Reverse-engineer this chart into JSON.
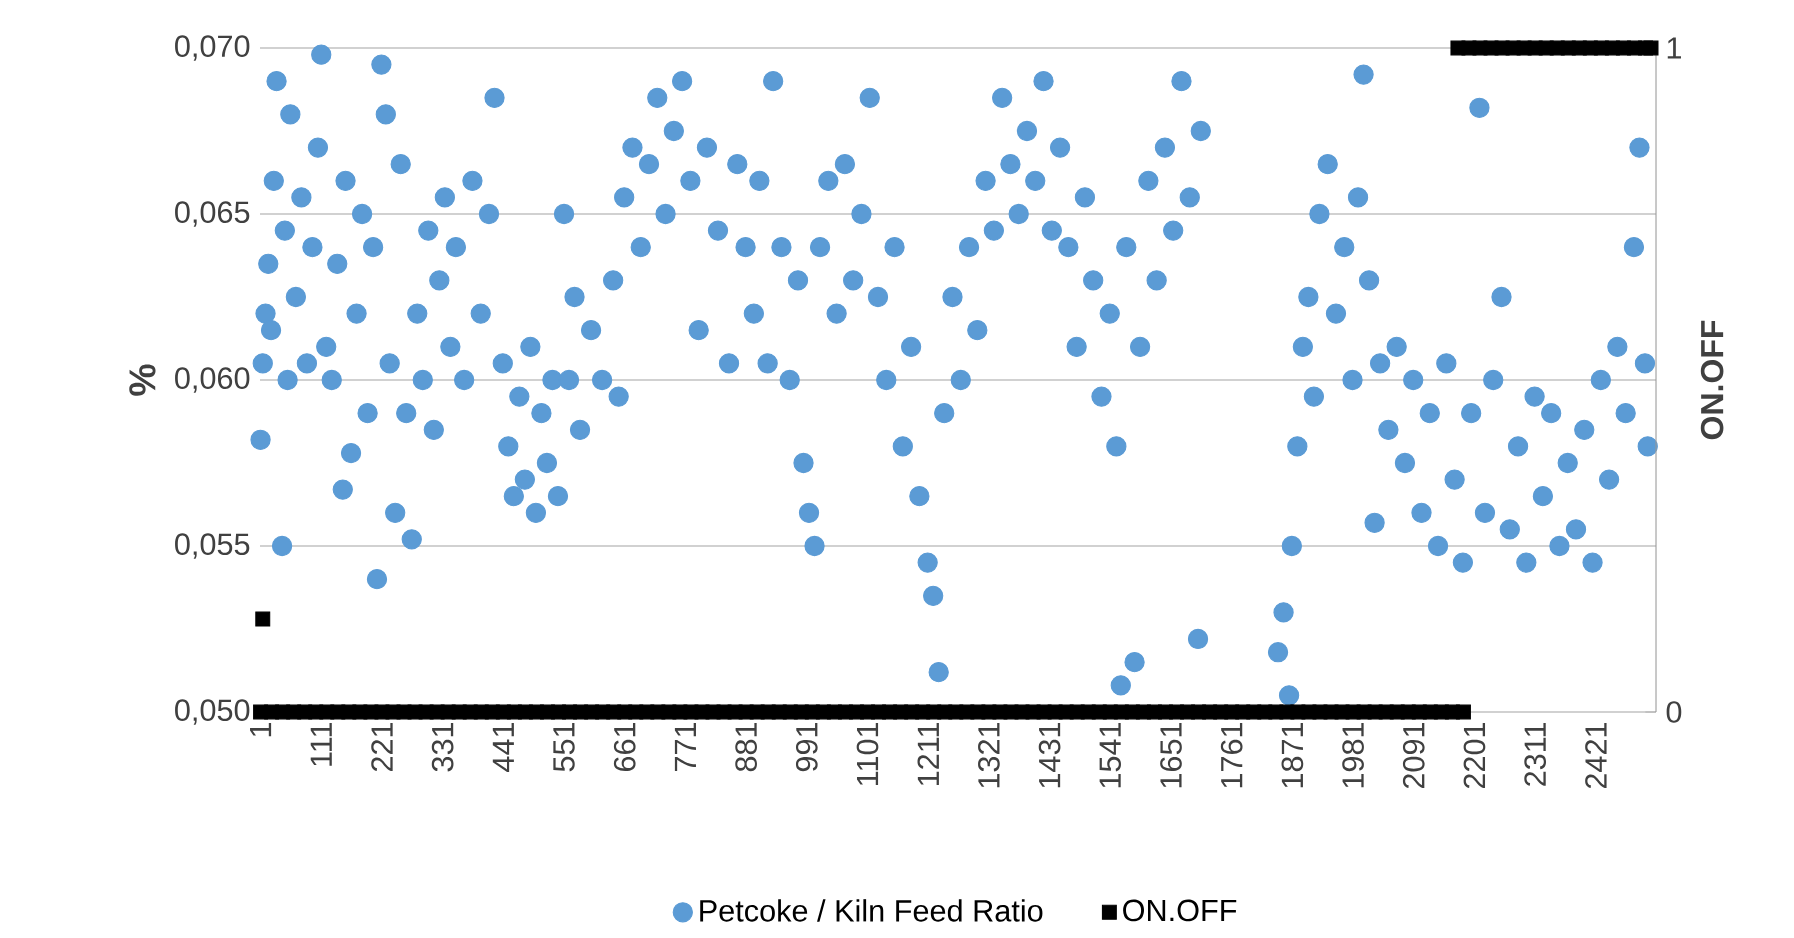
{
  "chart_data": {
    "type": "scatter",
    "ylabel": "%",
    "y2label": "ON.OFF",
    "xlim": [
      0,
      2530
    ],
    "xticks": [
      1,
      111,
      221,
      331,
      441,
      551,
      661,
      771,
      881,
      991,
      1101,
      1211,
      1321,
      1431,
      1541,
      1651,
      1761,
      1871,
      1981,
      2091,
      2201,
      2311,
      2421
    ],
    "ylim": [
      0.05,
      0.07
    ],
    "yticks": [
      {
        "value": 0.05,
        "label": "0,050"
      },
      {
        "value": 0.055,
        "label": "0,055"
      },
      {
        "value": 0.06,
        "label": "0,060"
      },
      {
        "value": 0.065,
        "label": "0,065"
      },
      {
        "value": 0.07,
        "label": "0,070"
      }
    ],
    "y2lim": [
      0,
      1
    ],
    "y2ticks": [
      0,
      1
    ],
    "grid": "y",
    "legend": "bottom",
    "series": [
      {
        "name": "Petcoke / Kiln Feed Ratio",
        "color": "#5b9bd5",
        "marker": "circle",
        "x": [
          1,
          5,
          10,
          15,
          20,
          25,
          30,
          40,
          45,
          50,
          55,
          65,
          75,
          85,
          95,
          105,
          111,
          120,
          130,
          140,
          150,
          155,
          165,
          175,
          185,
          195,
          205,
          212,
          220,
          228,
          235,
          245,
          255,
          265,
          275,
          285,
          295,
          305,
          315,
          325,
          335,
          345,
          355,
          370,
          385,
          400,
          415,
          425,
          440,
          450,
          460,
          470,
          480,
          490,
          500,
          510,
          520,
          530,
          540,
          551,
          560,
          570,
          580,
          600,
          620,
          640,
          650,
          660,
          675,
          690,
          705,
          720,
          735,
          750,
          765,
          780,
          795,
          810,
          830,
          850,
          865,
          880,
          895,
          905,
          920,
          930,
          945,
          960,
          975,
          985,
          995,
          1005,
          1015,
          1030,
          1045,
          1060,
          1075,
          1090,
          1105,
          1120,
          1135,
          1150,
          1165,
          1180,
          1195,
          1210,
          1220,
          1230,
          1240,
          1255,
          1270,
          1285,
          1300,
          1315,
          1330,
          1345,
          1360,
          1375,
          1390,
          1405,
          1420,
          1435,
          1450,
          1465,
          1480,
          1495,
          1510,
          1525,
          1540,
          1552,
          1560,
          1570,
          1585,
          1595,
          1610,
          1625,
          1640,
          1655,
          1670,
          1685,
          1700,
          1705,
          1845,
          1855,
          1865,
          1870,
          1880,
          1890,
          1900,
          1910,
          1920,
          1935,
          1950,
          1965,
          1980,
          1990,
          2000,
          2010,
          2020,
          2030,
          2045,
          2060,
          2075,
          2090,
          2105,
          2120,
          2135,
          2150,
          2165,
          2180,
          2195,
          2210,
          2220,
          2235,
          2250,
          2265,
          2280,
          2295,
          2310,
          2325,
          2340,
          2355,
          2370,
          2385,
          2400,
          2415,
          2430,
          2445,
          2460,
          2475,
          2490,
          2500,
          2510,
          2515
        ],
        "values": [
          0.0582,
          0.0605,
          0.062,
          0.0635,
          0.0615,
          0.066,
          0.069,
          0.055,
          0.0645,
          0.06,
          0.068,
          0.0625,
          0.0655,
          0.0605,
          0.064,
          0.067,
          0.0698,
          0.061,
          0.06,
          0.0635,
          0.0567,
          0.066,
          0.0578,
          0.062,
          0.065,
          0.059,
          0.064,
          0.054,
          0.0695,
          0.068,
          0.0605,
          0.056,
          0.0665,
          0.059,
          0.0552,
          0.062,
          0.06,
          0.0645,
          0.0585,
          0.063,
          0.0655,
          0.061,
          0.064,
          0.06,
          0.066,
          0.062,
          0.065,
          0.0685,
          0.0605,
          0.058,
          0.0565,
          0.0595,
          0.057,
          0.061,
          0.056,
          0.059,
          0.0575,
          0.06,
          0.0565,
          0.065,
          0.06,
          0.0625,
          0.0585,
          0.0615,
          0.06,
          0.063,
          0.0595,
          0.0655,
          0.067,
          0.064,
          0.0665,
          0.0685,
          0.065,
          0.0675,
          0.069,
          0.066,
          0.0615,
          0.067,
          0.0645,
          0.0605,
          0.0665,
          0.064,
          0.062,
          0.066,
          0.0605,
          0.069,
          0.064,
          0.06,
          0.063,
          0.0575,
          0.056,
          0.055,
          0.064,
          0.066,
          0.062,
          0.0665,
          0.063,
          0.065,
          0.0685,
          0.0625,
          0.06,
          0.064,
          0.058,
          0.061,
          0.0565,
          0.0545,
          0.0535,
          0.0512,
          0.059,
          0.0625,
          0.06,
          0.064,
          0.0615,
          0.066,
          0.0645,
          0.0685,
          0.0665,
          0.065,
          0.0675,
          0.066,
          0.069,
          0.0645,
          0.067,
          0.064,
          0.061,
          0.0655,
          0.063,
          0.0595,
          0.062,
          0.058,
          0.0508,
          0.064,
          0.0515,
          0.061,
          0.066,
          0.063,
          0.067,
          0.0645,
          0.069,
          0.0655,
          0.0522,
          0.0675,
          0.0518,
          0.053,
          0.0505,
          0.055,
          0.058,
          0.061,
          0.0625,
          0.0595,
          0.065,
          0.0665,
          0.062,
          0.064,
          0.06,
          0.0655,
          0.0692,
          0.063,
          0.0557,
          0.0605,
          0.0585,
          0.061,
          0.0575,
          0.06,
          0.056,
          0.059,
          0.055,
          0.0605,
          0.057,
          0.0545,
          0.059,
          0.0682,
          0.056,
          0.06,
          0.0625,
          0.0555,
          0.058,
          0.0545,
          0.0595,
          0.0565,
          0.059,
          0.055,
          0.0575,
          0.0555,
          0.0585,
          0.0545,
          0.06,
          0.057,
          0.061,
          0.059,
          0.064,
          0.067,
          0.0605,
          0.058
        ]
      },
      {
        "name": "ON.OFF",
        "color": "#000000",
        "marker": "square",
        "axis": "y2",
        "x": [
          5,
          1,
          21,
          41,
          61,
          81,
          101,
          121,
          141,
          161,
          181,
          201,
          221,
          241,
          261,
          281,
          301,
          321,
          341,
          361,
          381,
          401,
          421,
          441,
          461,
          481,
          501,
          521,
          541,
          561,
          581,
          601,
          621,
          641,
          661,
          681,
          701,
          721,
          741,
          761,
          781,
          801,
          821,
          841,
          861,
          881,
          901,
          921,
          941,
          961,
          981,
          1001,
          1021,
          1041,
          1061,
          1081,
          1101,
          1121,
          1141,
          1161,
          1181,
          1201,
          1221,
          1241,
          1261,
          1281,
          1301,
          1321,
          1341,
          1361,
          1381,
          1401,
          1421,
          1441,
          1461,
          1481,
          1501,
          1521,
          1541,
          1561,
          1581,
          1601,
          1621,
          1641,
          1661,
          1681,
          1701,
          1721,
          1741,
          1761,
          1781,
          1801,
          1821,
          1841,
          1861,
          1881,
          1901,
          1921,
          1941,
          1961,
          1981,
          2001,
          2021,
          2041,
          2061,
          2081,
          2101,
          2121,
          2141,
          2161,
          2181,
          2171,
          2191,
          2211,
          2231,
          2251,
          2271,
          2291,
          2311,
          2331,
          2351,
          2371,
          2391,
          2411,
          2431,
          2451,
          2471,
          2491,
          2511,
          2521
        ],
        "values": [
          0.14,
          0,
          0,
          0,
          0,
          0,
          0,
          0,
          0,
          0,
          0,
          0,
          0,
          0,
          0,
          0,
          0,
          0,
          0,
          0,
          0,
          0,
          0,
          0,
          0,
          0,
          0,
          0,
          0,
          0,
          0,
          0,
          0,
          0,
          0,
          0,
          0,
          0,
          0,
          0,
          0,
          0,
          0,
          0,
          0,
          0,
          0,
          0,
          0,
          0,
          0,
          0,
          0,
          0,
          0,
          0,
          0,
          0,
          0,
          0,
          0,
          0,
          0,
          0,
          0,
          0,
          0,
          0,
          0,
          0,
          0,
          0,
          0,
          0,
          0,
          0,
          0,
          0,
          0,
          0,
          0,
          0,
          0,
          0,
          0,
          0,
          0,
          0,
          0,
          0,
          0,
          0,
          0,
          0,
          0,
          0,
          0,
          0,
          0,
          0,
          0,
          0,
          0,
          0,
          0,
          0,
          0,
          0,
          0,
          0,
          0,
          1,
          1,
          1,
          1,
          1,
          1,
          1,
          1,
          1,
          1,
          1,
          1,
          1,
          1,
          1,
          1,
          1,
          1,
          1
        ]
      }
    ]
  }
}
